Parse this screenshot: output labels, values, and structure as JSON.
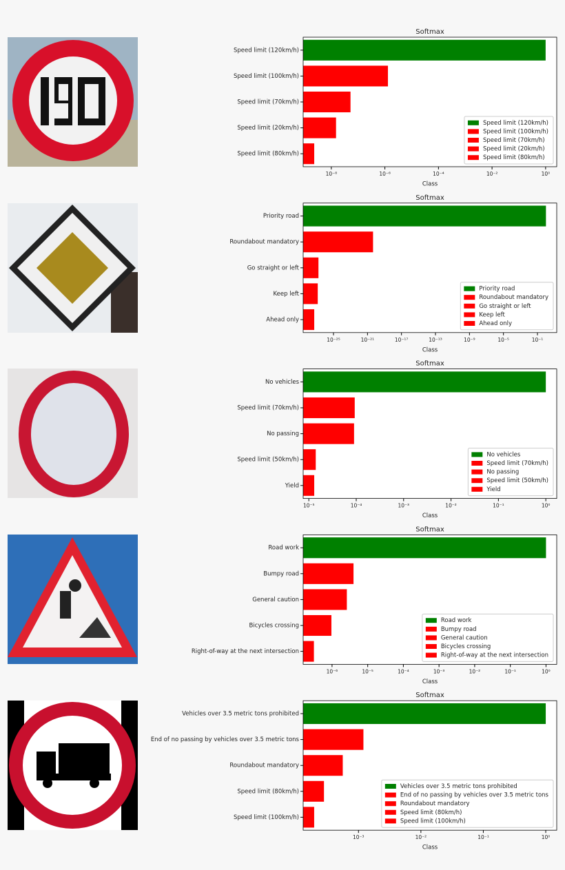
{
  "chart_data": [
    {
      "type": "bar",
      "orientation": "horizontal",
      "title": "Softmax",
      "xlabel": "Class",
      "categories": [
        "Speed limit (120km/h)",
        "Speed limit (100km/h)",
        "Speed limit (70km/h)",
        "Speed limit (20km/h)",
        "Speed limit (80km/h)"
      ],
      "values": [
        1.0,
        1.3e-06,
        5.2e-08,
        1.5e-08,
        2.3e-09
      ],
      "colors": [
        "#008000",
        "#ff0000",
        "#ff0000",
        "#ff0000",
        "#ff0000"
      ],
      "xscale": "log",
      "xlim": [
        8.9e-10,
        2.6
      ],
      "xticks": [
        {
          "value": 1e-08,
          "label": "10⁻⁸"
        },
        {
          "value": 1e-06,
          "label": "10⁻⁶"
        },
        {
          "value": 0.0001,
          "label": "10⁻⁴"
        },
        {
          "value": 0.01,
          "label": "10⁻²"
        },
        {
          "value": 1,
          "label": "10⁰"
        }
      ],
      "legend": "lower right"
    },
    {
      "type": "bar",
      "orientation": "horizontal",
      "title": "Softmax",
      "xlabel": "Class",
      "categories": [
        "Priority road",
        "Roundabout mandatory",
        "Go straight or left",
        "Keep left",
        "Ahead only"
      ],
      "values": [
        1.0,
        4.5e-21,
        1.7e-27,
        1.4e-27,
        5.4e-28
      ],
      "colors": [
        "#008000",
        "#ff0000",
        "#ff0000",
        "#ff0000",
        "#ff0000"
      ],
      "xscale": "log",
      "xlim": [
        2.7e-29,
        18.6
      ],
      "xticks": [
        {
          "value": 1e-25,
          "label": "10⁻²⁵"
        },
        {
          "value": 1e-21,
          "label": "10⁻²¹"
        },
        {
          "value": 1e-17,
          "label": "10⁻¹⁷"
        },
        {
          "value": 1e-13,
          "label": "10⁻¹³"
        },
        {
          "value": 1e-09,
          "label": "10⁻⁹"
        },
        {
          "value": 1e-05,
          "label": "10⁻⁵"
        },
        {
          "value": 0.1,
          "label": "10⁻¹"
        }
      ],
      "legend": "lower right"
    },
    {
      "type": "bar",
      "orientation": "horizontal",
      "title": "Softmax",
      "xlabel": "Class",
      "categories": [
        "No vehicles",
        "Speed limit (70km/h)",
        "No passing",
        "Speed limit (50km/h)",
        "Yield"
      ],
      "values": [
        1.0,
        9.3e-05,
        9e-05,
        1.4e-05,
        1.3e-05
      ],
      "colors": [
        "#008000",
        "#ff0000",
        "#ff0000",
        "#ff0000",
        "#ff0000"
      ],
      "xscale": "log",
      "xlim": [
        7.6e-06,
        1.7
      ],
      "xticks": [
        {
          "value": 1e-05,
          "label": "10⁻⁵"
        },
        {
          "value": 0.0001,
          "label": "10⁻⁴"
        },
        {
          "value": 0.001,
          "label": "10⁻³"
        },
        {
          "value": 0.01,
          "label": "10⁻²"
        },
        {
          "value": 0.1,
          "label": "10⁻¹"
        },
        {
          "value": 1,
          "label": "10⁰"
        }
      ],
      "legend": "lower right"
    },
    {
      "type": "bar",
      "orientation": "horizontal",
      "title": "Softmax",
      "xlabel": "Class",
      "categories": [
        "Road work",
        "Bumpy road",
        "General caution",
        "Bicycles crossing",
        "Right-of-way at the next intersection"
      ],
      "values": [
        1.0,
        4e-06,
        2.6e-06,
        9.6e-07,
        3.1e-07
      ],
      "colors": [
        "#008000",
        "#ff0000",
        "#ff0000",
        "#ff0000",
        "#ff0000"
      ],
      "xscale": "log",
      "xlim": [
        1.55e-07,
        2.0
      ],
      "xticks": [
        {
          "value": 1e-06,
          "label": "10⁻⁶"
        },
        {
          "value": 1e-05,
          "label": "10⁻⁵"
        },
        {
          "value": 0.0001,
          "label": "10⁻⁴"
        },
        {
          "value": 0.001,
          "label": "10⁻³"
        },
        {
          "value": 0.01,
          "label": "10⁻²"
        },
        {
          "value": 0.1,
          "label": "10⁻¹"
        },
        {
          "value": 1,
          "label": "10⁰"
        }
      ],
      "legend": "lower right"
    },
    {
      "type": "bar",
      "orientation": "horizontal",
      "title": "Softmax",
      "xlabel": "Class",
      "categories": [
        "Vehicles over 3.5 metric tons prohibited",
        "End of no passing by vehicles over 3.5 metric tons",
        "Roundabout mandatory",
        "Speed limit (80km/h)",
        "Speed limit (100km/h)"
      ],
      "values": [
        1.0,
        0.0012,
        0.00056,
        0.00028,
        0.000195
      ],
      "colors": [
        "#008000",
        "#ff0000",
        "#ff0000",
        "#ff0000",
        "#ff0000"
      ],
      "xscale": "log",
      "xlim": [
        0.00013,
        1.5
      ],
      "xticks": [
        {
          "value": 0.001,
          "label": "10⁻³"
        },
        {
          "value": 0.01,
          "label": "10⁻²"
        },
        {
          "value": 0.1,
          "label": "10⁻¹"
        },
        {
          "value": 1,
          "label": "10⁰"
        }
      ],
      "legend": "lower right"
    }
  ]
}
